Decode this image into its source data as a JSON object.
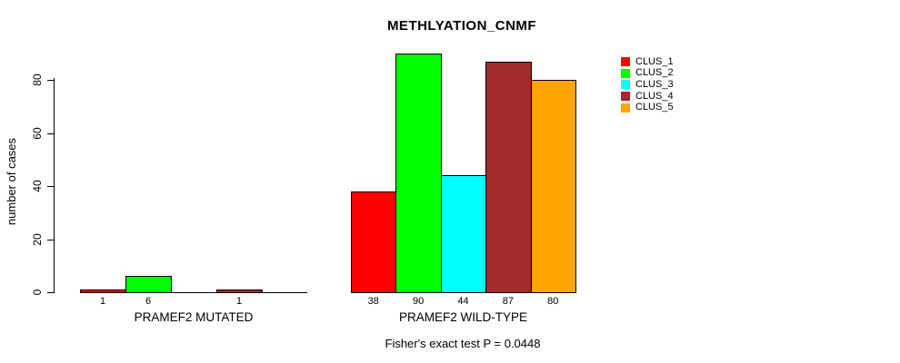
{
  "chart_data": {
    "type": "bar",
    "title": "METHLYATION_CNMF",
    "ylabel": "number of cases",
    "xlabel": "",
    "ylim": [
      0,
      90
    ],
    "yticks": [
      0,
      20,
      40,
      60,
      80
    ],
    "grid": false,
    "legend_position": "right-outside",
    "legend": [
      {
        "label": "CLUS_1",
        "color": "#FF0000"
      },
      {
        "label": "CLUS_2",
        "color": "#00FF00"
      },
      {
        "label": "CLUS_3",
        "color": "#00FFFF"
      },
      {
        "label": "CLUS_4",
        "color": "#A52A2A"
      },
      {
        "label": "CLUS_5",
        "color": "#FFA500"
      }
    ],
    "categories": [
      "CLUS_1",
      "CLUS_2",
      "CLUS_3",
      "CLUS_4",
      "CLUS_5"
    ],
    "groups": [
      {
        "key": "mutated",
        "label": "PRAMEF2 MUTATED",
        "values": [
          1,
          6,
          0,
          1,
          0
        ],
        "bar_labels": [
          "1",
          "6",
          "",
          "1",
          ""
        ]
      },
      {
        "key": "wild-type",
        "label": "PRAMEF2 WILD-TYPE",
        "values": [
          38,
          90,
          44,
          87,
          80
        ],
        "bar_labels": [
          "38",
          "90",
          "44",
          "87",
          "80"
        ]
      }
    ],
    "footnote": "Fisher's exact test P = 0.0448",
    "axis_color": "#000000",
    "background_color": "#FFFFFF"
  }
}
